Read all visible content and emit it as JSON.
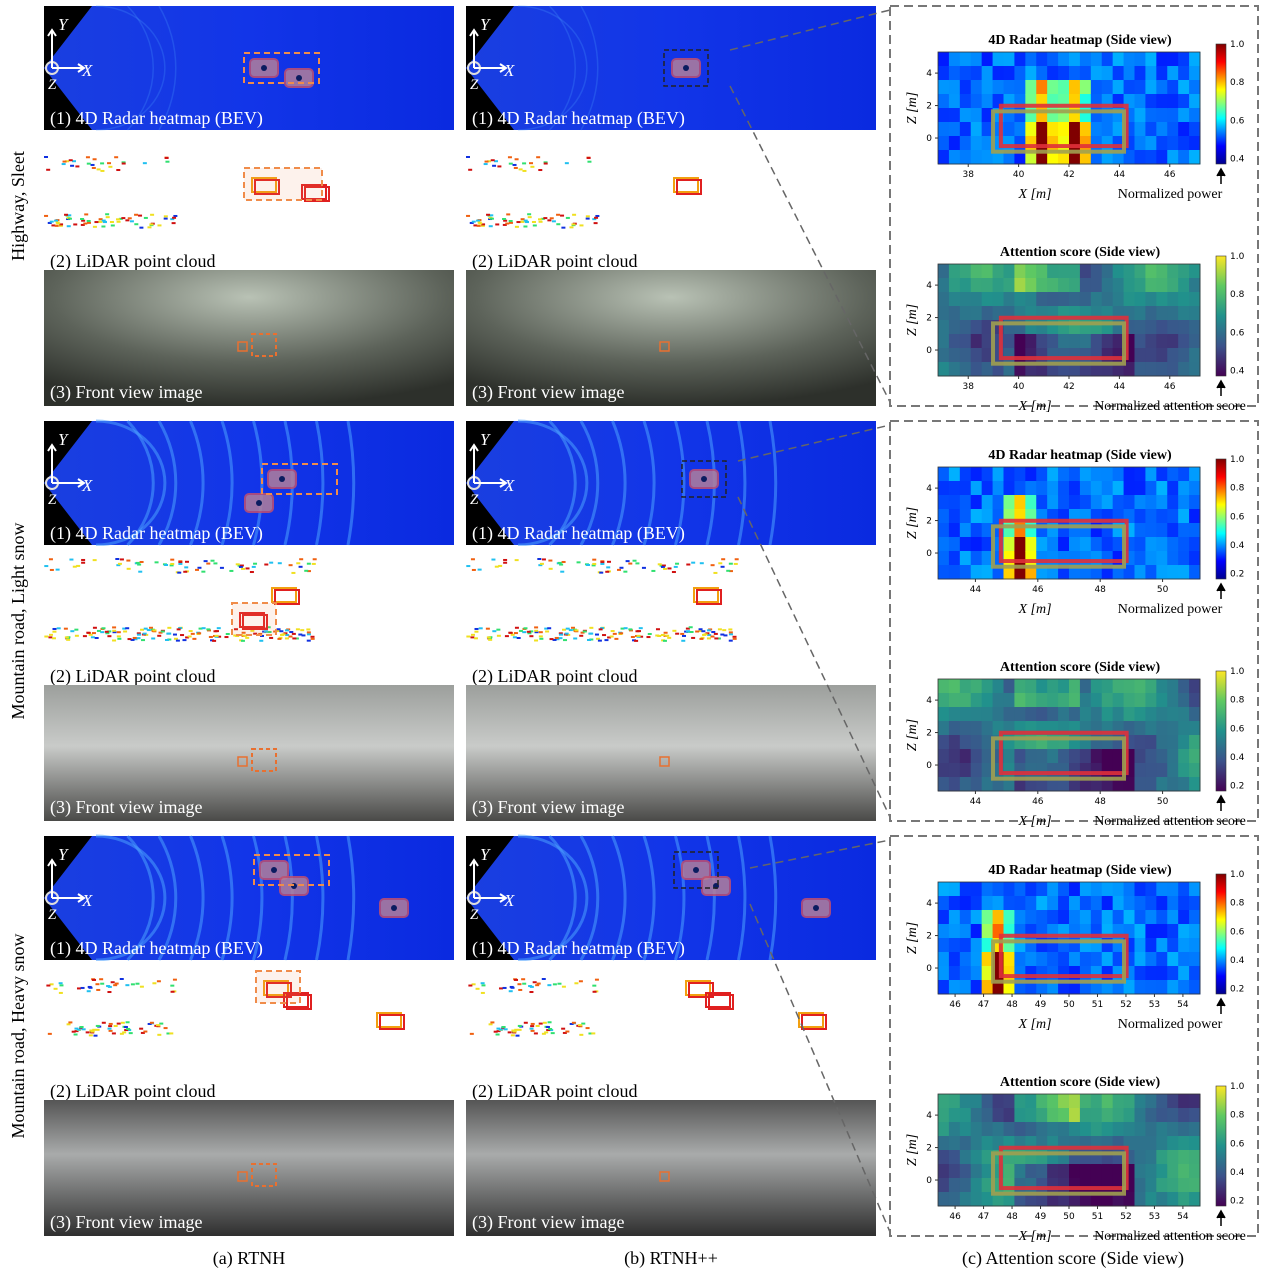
{
  "axis_glyphs": {
    "y": "Y",
    "x": "X",
    "z": "Z"
  },
  "columns": [
    "(a) RTNH",
    "(b) RTNH++",
    "(c) Attention score (Side view)"
  ],
  "rows": [
    {
      "label": "Highway, Sleet",
      "panels": [
        "(1) 4D Radar heatmap (BEV)",
        "(2) LiDAR point cloud",
        "(3) Front view image"
      ],
      "side": {
        "radar": {
          "title": "4D Radar heatmap (Side view)",
          "xlabel": "X [m]",
          "ylabel": "Z [m]",
          "cbar_label": "Normalized power",
          "xticks": [
            38,
            40,
            42,
            44,
            46
          ],
          "yticks": [
            0,
            2,
            4
          ],
          "cbar_ticks": [
            "0.4",
            "0.6",
            "0.8",
            "1.0"
          ]
        },
        "attention": {
          "title": "Attention score (Side view)",
          "xlabel": "X [m]",
          "ylabel": "Z [m]",
          "cbar_label": "Normalized attention score",
          "xticks": [
            38,
            40,
            42,
            44,
            46
          ],
          "yticks": [
            0,
            2,
            4
          ],
          "cbar_ticks": [
            "0.4",
            "0.6",
            "0.8",
            "1.0"
          ]
        }
      }
    },
    {
      "label": "Mountain road, Light snow",
      "panels": [
        "(1) 4D Radar heatmap (BEV)",
        "(2) LiDAR point cloud",
        "(3) Front view image"
      ],
      "side": {
        "radar": {
          "title": "4D Radar heatmap (Side view)",
          "xlabel": "X [m]",
          "ylabel": "Z [m]",
          "cbar_label": "Normalized power",
          "xticks": [
            44,
            46,
            48,
            50
          ],
          "yticks": [
            0,
            2,
            4
          ],
          "cbar_ticks": [
            "0.2",
            "0.4",
            "0.6",
            "0.8",
            "1.0"
          ]
        },
        "attention": {
          "title": "Attention score (Side view)",
          "xlabel": "X [m]",
          "ylabel": "Z [m]",
          "cbar_label": "Normalized attention score",
          "xticks": [
            44,
            46,
            48,
            50
          ],
          "yticks": [
            0,
            2,
            4
          ],
          "cbar_ticks": [
            "0.2",
            "0.4",
            "0.6",
            "0.8",
            "1.0"
          ]
        }
      }
    },
    {
      "label": "Mountain road, Heavy snow",
      "panels": [
        "(1) 4D Radar heatmap (BEV)",
        "(2) LiDAR point cloud",
        "(3) Front view image"
      ],
      "side": {
        "radar": {
          "title": "4D Radar heatmap (Side view)",
          "xlabel": "X [m]",
          "ylabel": "Z [m]",
          "cbar_label": "Normalized power",
          "xticks": [
            46,
            47,
            48,
            49,
            50,
            51,
            52,
            53,
            54
          ],
          "yticks": [
            0,
            2,
            4
          ],
          "cbar_ticks": [
            "0.2",
            "0.4",
            "0.6",
            "0.8",
            "1.0"
          ]
        },
        "attention": {
          "title": "Attention score (Side view)",
          "xlabel": "X [m]",
          "ylabel": "Z [m]",
          "cbar_label": "Normalized attention score",
          "xticks": [
            46,
            47,
            48,
            49,
            50,
            51,
            52,
            53,
            54
          ],
          "yticks": [
            0,
            2,
            4
          ],
          "cbar_ticks": [
            "0.2",
            "0.4",
            "0.6",
            "0.8",
            "1.0"
          ]
        }
      }
    }
  ]
}
